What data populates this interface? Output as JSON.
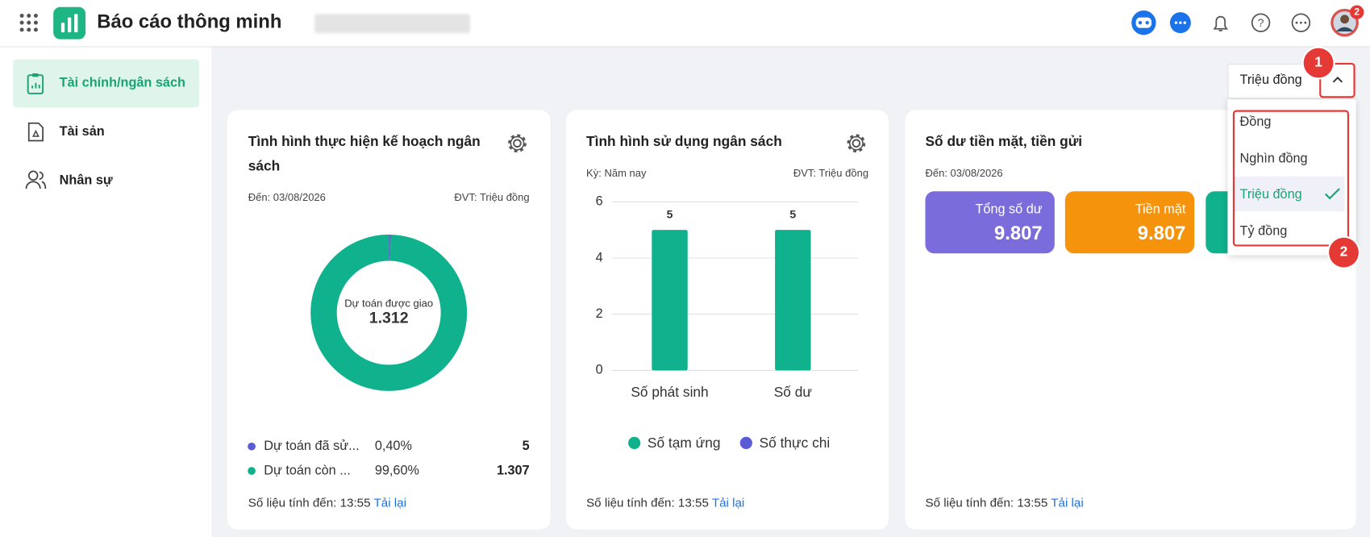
{
  "header": {
    "title": "Báo cáo thông minh",
    "notification_badge": "2"
  },
  "sidebar": {
    "items": [
      "Tài chính/ngân sách",
      "Tài sản",
      "Nhân sự"
    ]
  },
  "unit_selector": {
    "selected": "Triệu đồng",
    "options": [
      "Đồng",
      "Nghìn đồng",
      "Triệu đồng",
      "Tỷ đồng"
    ],
    "callouts": [
      "1",
      "2"
    ]
  },
  "cards": [
    {
      "title": "Tình hình thực hiện kế hoạch ngân sách",
      "date": "Đến: 03/08/2026",
      "unit": "ĐVT: Triệu đồng",
      "footer": "Số liệu tính đến: 13:55",
      "reload": "Tải lại"
    },
    {
      "title": "Tình hình sử dụng ngân sách",
      "period": "Kỳ: Năm nay",
      "unit": "ĐVT: Triệu đồng",
      "footer": "Số liệu tính đến: 13:55",
      "reload": "Tải lại"
    },
    {
      "title": "Số dư tiền mặt, tiền gửi",
      "date": "Đến: 03/08/2026",
      "tiles": [
        {
          "label": "Tổng số dư",
          "value": "9.807"
        },
        {
          "label": "Tiền mặt",
          "value": "9.807"
        }
      ],
      "footer": "Số liệu tính đến: 13:55",
      "reload": "Tải lại"
    }
  ],
  "chart_data": [
    {
      "type": "donut",
      "center_label": "Dự toán được giao",
      "center_value": "1.312",
      "categories": [
        "Dự toán đã sử...",
        "Dự toán còn ..."
      ],
      "values": [
        0.4,
        99.6
      ],
      "value_labels": [
        "0,40%",
        "99,60%"
      ],
      "amounts": [
        "5",
        "1.307"
      ],
      "colors": [
        "#5b5bd6",
        "#10b28e"
      ]
    },
    {
      "type": "bar",
      "categories": [
        "Số phát sinh",
        "Số dư"
      ],
      "series": [
        {
          "name": "Số tạm ứng",
          "color": "#10b28e",
          "values": [
            5,
            5
          ]
        },
        {
          "name": "Số thực chi",
          "color": "#5b5bd6",
          "values": [
            0,
            0
          ]
        }
      ],
      "ylim": [
        0,
        6
      ],
      "yticks": [
        0,
        2,
        4,
        6
      ],
      "grid": true
    }
  ]
}
